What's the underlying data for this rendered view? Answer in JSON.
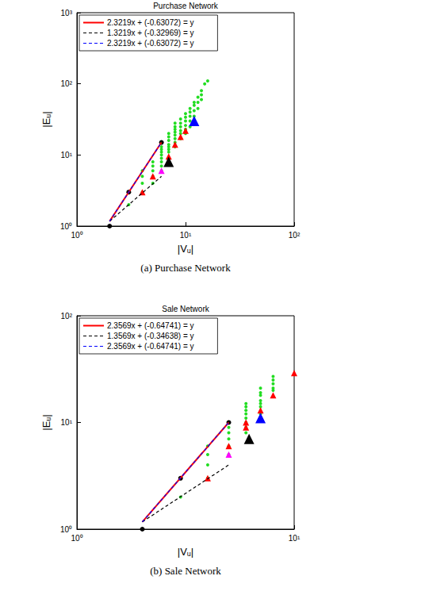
{
  "chart_data": [
    {
      "type": "scatter",
      "title": "Purchase Network",
      "subtitle": "(a) Purchase Network",
      "x_label": "|Vᵤ|",
      "y_label": "|Eᵤ|",
      "log": true,
      "grid": false,
      "xlim": [
        1,
        100
      ],
      "ylim": [
        1,
        1000
      ],
      "xticks": [
        {
          "value": 1,
          "label": "10⁰"
        },
        {
          "value": 10,
          "label": "10¹"
        },
        {
          "value": 100,
          "label": "10²"
        }
      ],
      "yticks": [
        {
          "value": 1,
          "label": "10⁰"
        },
        {
          "value": 10,
          "label": "10¹"
        },
        {
          "value": 100,
          "label": "10²"
        },
        {
          "value": 1000,
          "label": "10³"
        }
      ],
      "series": [
        {
          "type": "scatter",
          "color": "#22dd22",
          "marker": "dot",
          "x": [
            3,
            4,
            4,
            4,
            4,
            5,
            5,
            5,
            5,
            5,
            6,
            6,
            6,
            6,
            6,
            6,
            6,
            6,
            7,
            7,
            7,
            7,
            7,
            7,
            7,
            7,
            8,
            8,
            8,
            8,
            8,
            8,
            8,
            8,
            9,
            9,
            9,
            9,
            9,
            9,
            10,
            10,
            10,
            10,
            10,
            10,
            11,
            11,
            11,
            11,
            11,
            12,
            12,
            12,
            12,
            13,
            13,
            13,
            14,
            14,
            14,
            15,
            16
          ],
          "values": [
            2,
            3,
            4,
            5,
            6,
            4,
            5,
            6,
            7,
            8,
            6,
            7,
            8,
            9,
            10,
            11,
            12,
            13,
            9,
            11,
            12,
            13,
            14,
            16,
            18,
            20,
            13,
            15,
            17,
            19,
            21,
            23,
            25,
            28,
            17,
            20,
            22,
            25,
            28,
            32,
            20,
            23,
            26,
            30,
            34,
            38,
            25,
            30,
            35,
            40,
            45,
            35,
            42,
            50,
            55,
            45,
            55,
            65,
            60,
            70,
            80,
            100,
            110
          ]
        },
        {
          "type": "scatter",
          "color": "#ff0000",
          "marker": "triangle",
          "x": [
            4,
            5,
            7,
            8,
            9,
            10
          ],
          "values": [
            3,
            5,
            9.5,
            14,
            18,
            22
          ]
        },
        {
          "type": "scatter",
          "color": "#ff00ff",
          "marker": "triangle",
          "x": [
            6
          ],
          "values": [
            6
          ]
        },
        {
          "type": "scatter",
          "color": "#000000",
          "marker": "large_triangle",
          "x": [
            7
          ],
          "values": [
            8
          ]
        },
        {
          "type": "scatter",
          "color": "#0000ff",
          "marker": "large_triangle",
          "x": [
            12
          ],
          "values": [
            30
          ]
        },
        {
          "type": "scatter",
          "color": "#000000",
          "marker": "circle",
          "x": [
            2,
            3,
            6
          ],
          "values": [
            1,
            3,
            15
          ]
        },
        {
          "type": "line",
          "name": "2.3219x + (-0.63072) = y",
          "color": "#ff0000",
          "line_style": "solid",
          "x": [
            2,
            6
          ],
          "values": [
            1.17,
            15
          ]
        },
        {
          "type": "line",
          "name": "1.3219x + (-0.32969) = y",
          "color": "#000000",
          "line_style": "dashed",
          "x": [
            2,
            6
          ],
          "values": [
            1.17,
            5
          ]
        },
        {
          "type": "line",
          "name": "2.3219x + (-0.63072) = y",
          "color": "#0000ff",
          "line_style": "dashed",
          "x": [
            2,
            6
          ],
          "values": [
            1.17,
            15
          ]
        }
      ]
    },
    {
      "type": "scatter",
      "title": "Sale Network",
      "subtitle": "(b) Sale Network",
      "x_label": "|Vᵤ|",
      "y_label": "|Eᵤ|",
      "log": true,
      "grid": false,
      "xlim": [
        1,
        10
      ],
      "ylim": [
        1,
        100
      ],
      "xticks": [
        {
          "value": 1,
          "label": "10⁰"
        },
        {
          "value": 10,
          "label": "10¹"
        }
      ],
      "yticks": [
        {
          "value": 1,
          "label": "10⁰"
        },
        {
          "value": 10,
          "label": "10¹"
        },
        {
          "value": 100,
          "label": "10²"
        }
      ],
      "series": [
        {
          "type": "scatter",
          "color": "#22dd22",
          "marker": "dot",
          "x": [
            3,
            4,
            4,
            4,
            4,
            5,
            5,
            5,
            5,
            5,
            6,
            6,
            6,
            6,
            6,
            6,
            6,
            6,
            7,
            7,
            7,
            7,
            7,
            7,
            7,
            8,
            8,
            8,
            8,
            8
          ],
          "values": [
            2,
            3,
            4,
            5,
            6,
            5,
            6,
            7,
            8,
            9,
            8,
            9,
            10,
            11,
            12,
            13,
            14,
            15,
            12,
            14,
            15,
            16,
            18,
            19,
            21,
            20,
            21,
            23,
            25,
            27
          ]
        },
        {
          "type": "scatter",
          "color": "#ff0000",
          "marker": "triangle",
          "x": [
            4,
            5,
            6,
            6,
            7,
            8,
            10
          ],
          "values": [
            3,
            6,
            9,
            10,
            13,
            18,
            29
          ]
        },
        {
          "type": "scatter",
          "color": "#ff00ff",
          "marker": "triangle",
          "x": [
            5
          ],
          "values": [
            5
          ]
        },
        {
          "type": "scatter",
          "color": "#000000",
          "marker": "large_triangle",
          "x": [
            6.2
          ],
          "values": [
            7
          ]
        },
        {
          "type": "scatter",
          "color": "#0000ff",
          "marker": "large_triangle",
          "x": [
            7
          ],
          "values": [
            11
          ]
        },
        {
          "type": "scatter",
          "color": "#000000",
          "marker": "circle",
          "x": [
            2,
            3,
            5
          ],
          "values": [
            1,
            3,
            10
          ]
        },
        {
          "type": "line",
          "name": "2.3569x + (-0.64741) = y",
          "color": "#ff0000",
          "line_style": "solid",
          "x": [
            2,
            5
          ],
          "values": [
            1.17,
            10
          ]
        },
        {
          "type": "line",
          "name": "1.3569x + (-0.34638) = y",
          "color": "#000000",
          "line_style": "dashed",
          "x": [
            2,
            5
          ],
          "values": [
            1.17,
            4
          ]
        },
        {
          "type": "line",
          "name": "2.3569x + (-0.64741) = y",
          "color": "#0000ff",
          "line_style": "dashed",
          "x": [
            2,
            5
          ],
          "values": [
            1.17,
            10
          ]
        }
      ]
    }
  ]
}
